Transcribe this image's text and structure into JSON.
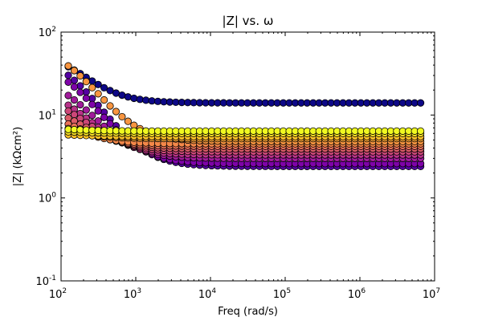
{
  "chart_data": {
    "type": "scatter",
    "title": "|Z| vs. ω",
    "xlabel": "Freq (rad/s)",
    "ylabel": "|Z| (kΩcm²)",
    "xscale": "log",
    "yscale": "log",
    "xlim": [
      100,
      10000000
    ],
    "ylim": [
      0.1,
      100
    ],
    "x_ticks": [
      {
        "value": 100,
        "base": "10",
        "exp": "2"
      },
      {
        "value": 1000,
        "base": "10",
        "exp": "3"
      },
      {
        "value": 10000,
        "base": "10",
        "exp": "4"
      },
      {
        "value": 100000,
        "base": "10",
        "exp": "5"
      },
      {
        "value": 1000000,
        "base": "10",
        "exp": "6"
      },
      {
        "value": 10000000,
        "base": "10",
        "exp": "7"
      }
    ],
    "y_ticks": [
      {
        "value": 0.1,
        "base": "10",
        "exp": "-1"
      },
      {
        "value": 1,
        "base": "10",
        "exp": "0"
      },
      {
        "value": 10,
        "base": "10",
        "exp": "1"
      },
      {
        "value": 100,
        "base": "10",
        "exp": "2"
      }
    ],
    "grid": false,
    "legend": "none",
    "colormap": "plasma",
    "colors": [
      "#0d0887",
      "#7e03a8",
      "#cc4778",
      "#f89540",
      "#f0f921"
    ],
    "freq_range": [
      125,
      6500000
    ],
    "points_per_series": 60,
    "series": [
      {
        "low_freq_value": 60,
        "plateau": 14.0,
        "color": "#0d0887"
      },
      {
        "low_freq_value": 55,
        "plateau": 2.4,
        "color": "#5402a3"
      },
      {
        "low_freq_value": 45,
        "plateau": 2.6,
        "color": "#7e03a8"
      },
      {
        "low_freq_value": 30,
        "plateau": 3.0,
        "color": "#a11b9b"
      },
      {
        "low_freq_value": 22,
        "plateau": 3.3,
        "color": "#b83289"
      },
      {
        "low_freq_value": 18,
        "plateau": 3.6,
        "color": "#cc4778"
      },
      {
        "low_freq_value": 14,
        "plateau": 3.9,
        "color": "#db5c68"
      },
      {
        "low_freq_value": 11,
        "plateau": 4.2,
        "color": "#e97158"
      },
      {
        "low_freq_value": 9,
        "plateau": 4.5,
        "color": "#f48849"
      },
      {
        "low_freq_value": 70,
        "plateau": 4.8,
        "color": "#f89540"
      },
      {
        "low_freq_value": 7,
        "plateau": 5.2,
        "color": "#fca636"
      },
      {
        "low_freq_value": 6,
        "plateau": 5.5,
        "color": "#fdc328"
      },
      {
        "low_freq_value": 6.5,
        "plateau": 6.0,
        "color": "#f7e225"
      },
      {
        "low_freq_value": 7,
        "plateau": 6.4,
        "color": "#f0f921"
      }
    ]
  }
}
